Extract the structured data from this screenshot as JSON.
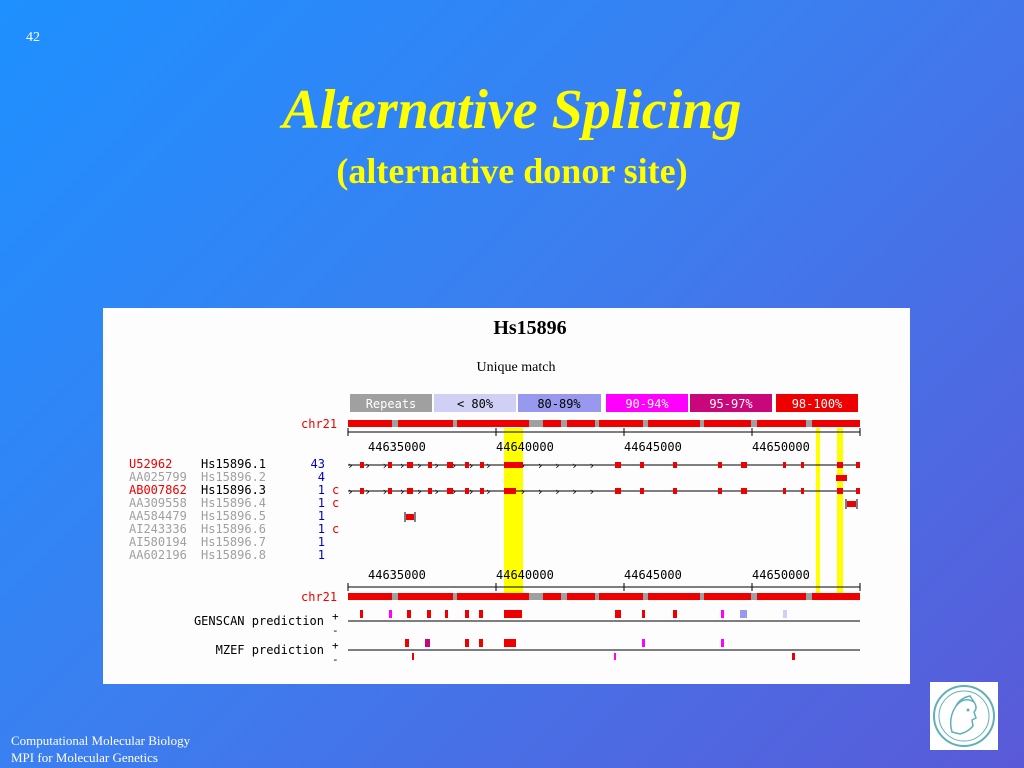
{
  "slide": {
    "number": "42",
    "title": "Alternative Splicing",
    "subtitle": "(alternative donor site)",
    "footer": {
      "line1": "Computational Molecular Biology",
      "line2": "MPI for Molecular Genetics"
    }
  },
  "figure": {
    "title": "Hs15896",
    "subtitle": "Unique match",
    "legend": [
      {
        "label": "Repeats",
        "color": "#a0a0a0"
      },
      {
        "label": "< 80%",
        "color": "#d0d0f4",
        "text_color": "#000000"
      },
      {
        "label": "80-89%",
        "color": "#9898ee",
        "text_color": "#000000"
      },
      {
        "label": "90-94%",
        "color": "#ff00ff"
      },
      {
        "label": "95-97%",
        "color": "#c8087a"
      },
      {
        "label": "98-100%",
        "color": "#ee0000"
      }
    ],
    "chromosome_label": "chr21",
    "coordinates": [
      "44635000",
      "44640000",
      "44645000",
      "44650000"
    ],
    "sequences": [
      {
        "acc": "U52962",
        "cluster": "Hs15896.1",
        "count": "43",
        "flag": "",
        "acc_color": "#ee0000",
        "cluster_color": "#000000"
      },
      {
        "acc": "AA025799",
        "cluster": "Hs15896.2",
        "count": "4",
        "flag": "",
        "acc_color": "#a0a0a0",
        "cluster_color": "#a0a0a0"
      },
      {
        "acc": "AB007862",
        "cluster": "Hs15896.3",
        "count": "1",
        "flag": "c",
        "acc_color": "#ee0000",
        "cluster_color": "#000000"
      },
      {
        "acc": "AA309558",
        "cluster": "Hs15896.4",
        "count": "1",
        "flag": "c",
        "acc_color": "#a0a0a0",
        "cluster_color": "#a0a0a0"
      },
      {
        "acc": "AA584479",
        "cluster": "Hs15896.5",
        "count": "1",
        "flag": "",
        "acc_color": "#a0a0a0",
        "cluster_color": "#a0a0a0"
      },
      {
        "acc": "AI243336",
        "cluster": "Hs15896.6",
        "count": "1",
        "flag": "c",
        "acc_color": "#a0a0a0",
        "cluster_color": "#a0a0a0"
      },
      {
        "acc": "AI580194",
        "cluster": "Hs15896.7",
        "count": "1",
        "flag": "",
        "acc_color": "#a0a0a0",
        "cluster_color": "#a0a0a0"
      },
      {
        "acc": "AA602196",
        "cluster": "Hs15896.8",
        "count": "1",
        "flag": "",
        "acc_color": "#a0a0a0",
        "cluster_color": "#a0a0a0"
      }
    ],
    "predictions": [
      {
        "label": "GENSCAN prediction"
      },
      {
        "label": "MZEF prediction"
      }
    ],
    "strand_plus": "+",
    "strand_minus": "-"
  }
}
